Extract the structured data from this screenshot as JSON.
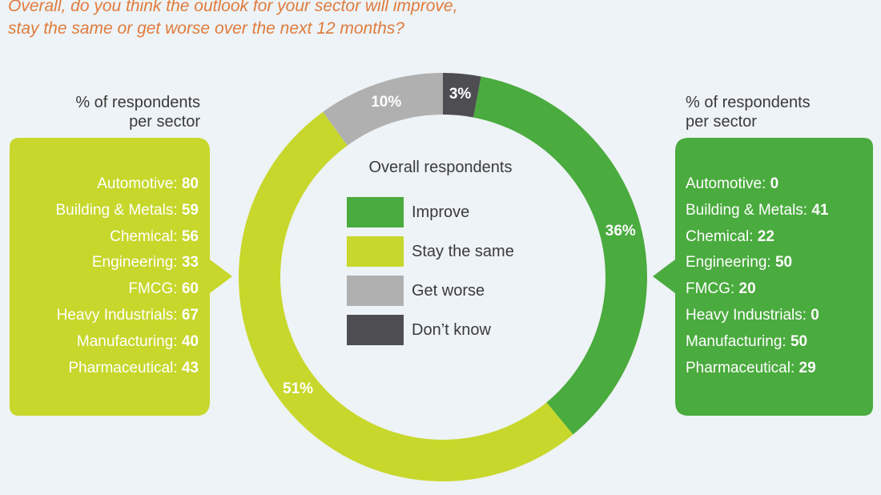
{
  "question": {
    "line1": "Overall, do you think the outlook for your sector will improve,",
    "line2": "stay the same or get worse over the next 12 months?"
  },
  "colors": {
    "improve": "#4aab3e",
    "stay_same": "#c7d72b",
    "get_worse": "#b0b0b0",
    "dont_know": "#4e4e52",
    "question_text": "#e07b3c"
  },
  "left_panel": {
    "title_line1": "% of respondents",
    "title_line2": "per sector",
    "color": "#c7d72b",
    "items": [
      {
        "label": "Automotive:",
        "value": "80"
      },
      {
        "label": "Building & Metals:",
        "value": "59"
      },
      {
        "label": "Chemical:",
        "value": "56"
      },
      {
        "label": "Engineering:",
        "value": "33"
      },
      {
        "label": "FMCG:",
        "value": "60"
      },
      {
        "label": "Heavy Industrials:",
        "value": "67"
      },
      {
        "label": "Manufacturing:",
        "value": "40"
      },
      {
        "label": "Pharmaceutical:",
        "value": "43"
      }
    ]
  },
  "right_panel": {
    "title_line1": "% of respondents",
    "title_line2": "per sector",
    "color": "#4aab3e",
    "items": [
      {
        "label": "Automotive:",
        "value": "0"
      },
      {
        "label": "Building & Metals:",
        "value": "41"
      },
      {
        "label": "Chemical:",
        "value": "22"
      },
      {
        "label": "Engineering:",
        "value": "50"
      },
      {
        "label": "FMCG:",
        "value": "20"
      },
      {
        "label": "Heavy Industrials:",
        "value": "0"
      },
      {
        "label": "Manufacturing:",
        "value": "50"
      },
      {
        "label": "Pharmaceutical:",
        "value": "29"
      }
    ]
  },
  "legend": {
    "title": "Overall respondents",
    "items": [
      "Improve",
      "Stay the same",
      "Get worse",
      "Don’t know"
    ]
  },
  "chart_data": {
    "type": "pie",
    "style": "donut",
    "title": "Overall respondents",
    "categories": [
      "Improve",
      "Stay the same",
      "Get worse",
      "Don’t know"
    ],
    "values": [
      36,
      51,
      10,
      3
    ],
    "value_labels": [
      "36%",
      "51%",
      "10%",
      "3%"
    ],
    "colors": [
      "#4aab3e",
      "#c7d72b",
      "#b0b0b0",
      "#4e4e52"
    ],
    "order": "clockwise from top: Don’t know, Improve, Stay the same, Get worse"
  }
}
